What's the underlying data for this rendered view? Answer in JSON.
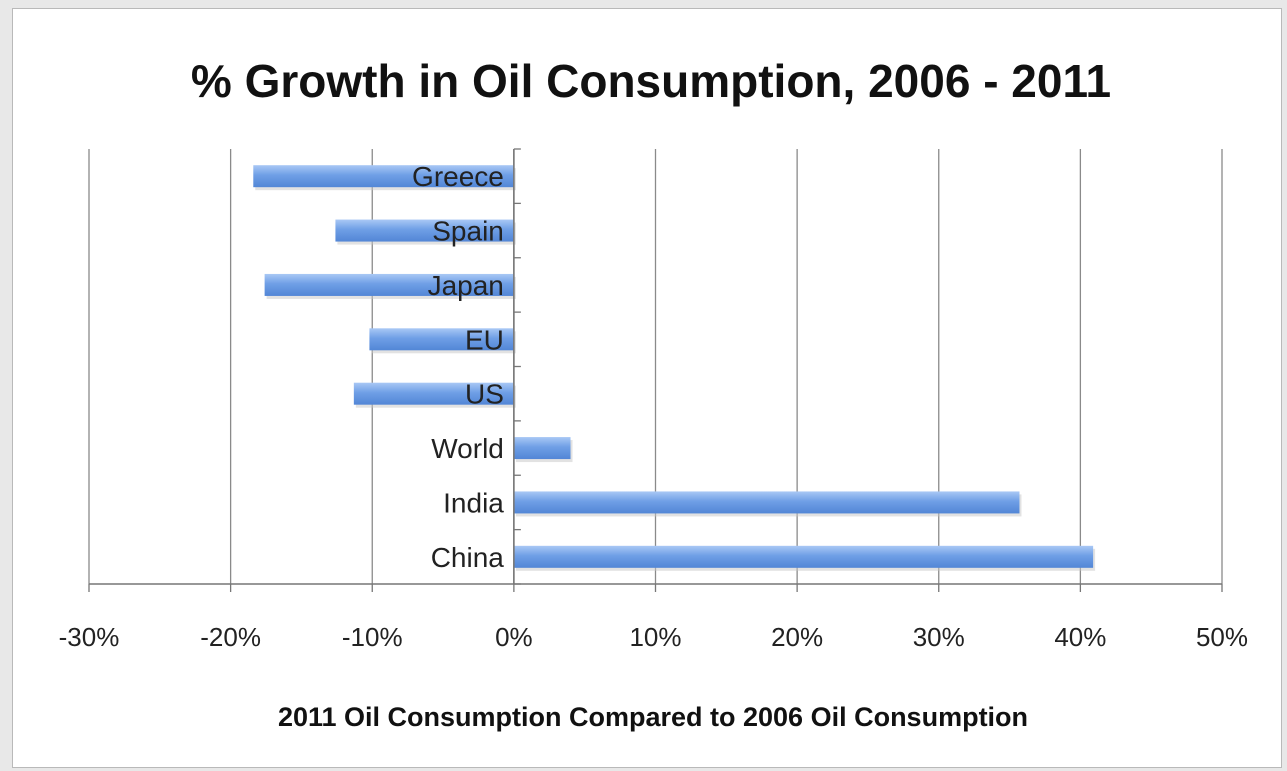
{
  "chart_data": {
    "type": "bar",
    "orientation": "horizontal",
    "title": "% Growth in Oil Consumption, 2006 - 2011",
    "xlabel": "2011 Oil Consumption Compared to 2006 Oil Consumption",
    "ylabel": "",
    "categories": [
      "Greece",
      "Spain",
      "Japan",
      "EU",
      "US",
      "World",
      "India",
      "China"
    ],
    "values": [
      -18.4,
      -12.6,
      -17.6,
      -10.2,
      -11.3,
      4.0,
      35.7,
      40.9
    ],
    "xlim": [
      -30,
      50
    ],
    "xticks": [
      "-30%",
      "-20%",
      "-10%",
      "0%",
      "10%",
      "20%",
      "30%",
      "40%",
      "50%"
    ],
    "grid": "vertical",
    "legend": "none",
    "bar_color": "#6f9fe6"
  }
}
